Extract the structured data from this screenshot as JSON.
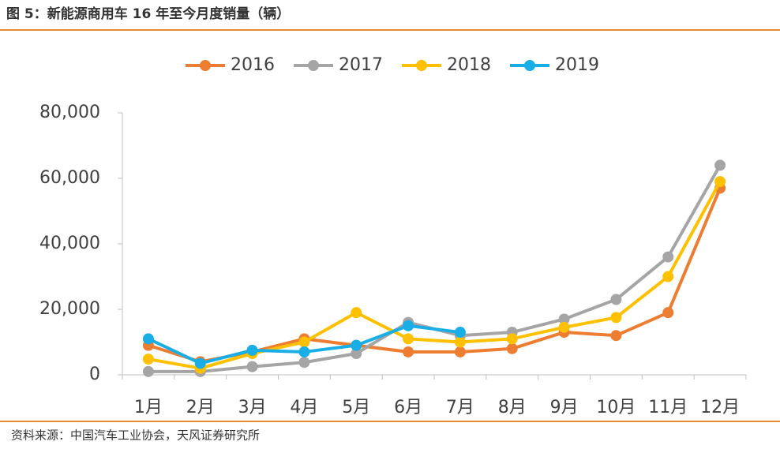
{
  "chart_data": {
    "type": "line",
    "title": "图 5：新能源商用车 16 年至今月度销量（辆）",
    "source": "资料来源：中国汽车工业协会，天风证券研究所",
    "categories": [
      "1月",
      "2月",
      "3月",
      "4月",
      "5月",
      "6月",
      "7月",
      "8月",
      "9月",
      "10月",
      "11月",
      "12月"
    ],
    "series": [
      {
        "name": "2016",
        "color": "#ed7d31",
        "values": [
          9000,
          4000,
          7000,
          11000,
          9000,
          7000,
          7000,
          8000,
          13000,
          12000,
          19000,
          57000
        ]
      },
      {
        "name": "2017",
        "color": "#a5a5a5",
        "values": [
          1000,
          1000,
          2500,
          3800,
          6500,
          16000,
          12000,
          13000,
          17000,
          23000,
          36000,
          64000
        ]
      },
      {
        "name": "2018",
        "color": "#ffc000",
        "values": [
          4800,
          2000,
          6500,
          10000,
          19000,
          11000,
          10000,
          11000,
          14500,
          17500,
          30000,
          59000
        ]
      },
      {
        "name": "2019",
        "color": "#1aaee6",
        "values": [
          11000,
          3500,
          7500,
          7000,
          9000,
          15000,
          13000,
          null,
          null,
          null,
          null,
          null
        ]
      }
    ],
    "ylim": [
      0,
      80000
    ],
    "yticks": [
      0,
      {
        "value": 20000,
        "label": "20,000"
      },
      {
        "value": 40000,
        "label": "40,000"
      },
      {
        "value": 60000,
        "label": "60,000"
      },
      {
        "value": 80000,
        "label": "80,000"
      }
    ],
    "legend": "top"
  }
}
